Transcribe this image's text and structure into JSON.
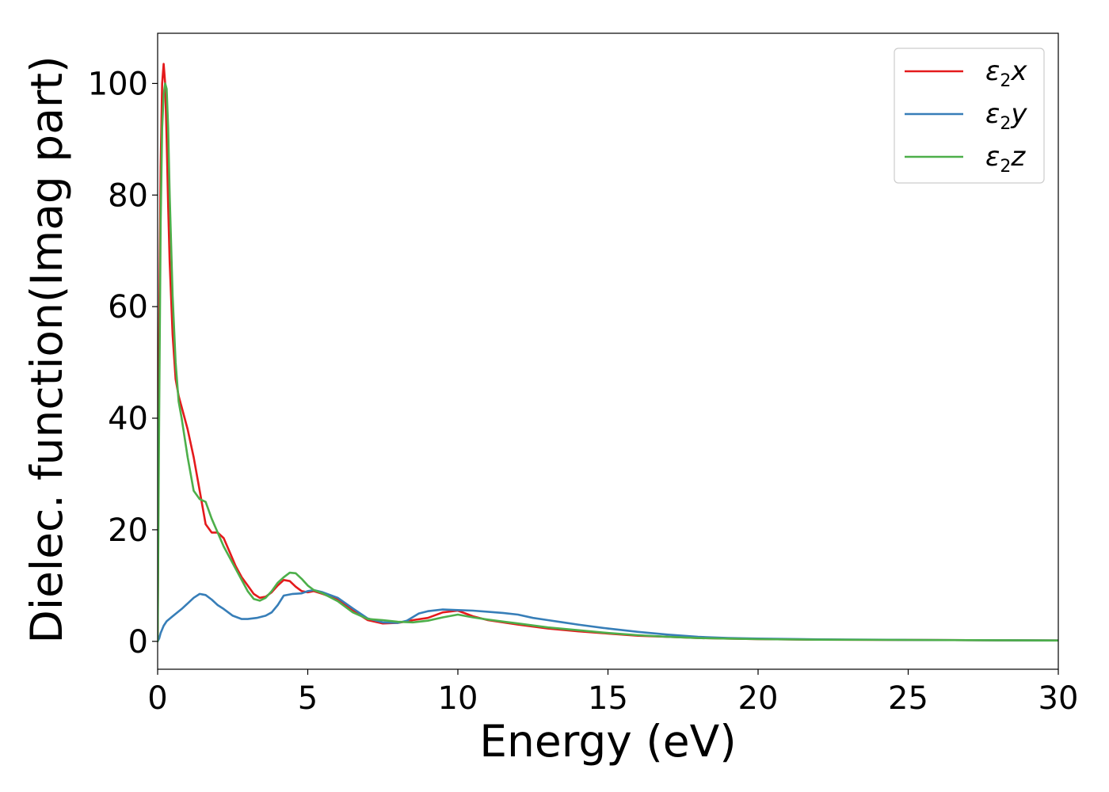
{
  "chart_data": {
    "type": "line",
    "title": "",
    "xlabel": "Energy (eV)",
    "ylabel": "Dielec. function(Imag part)",
    "xlim": [
      0,
      30
    ],
    "ylim": [
      -5,
      109
    ],
    "xticks": [
      0,
      5,
      10,
      15,
      20,
      25,
      30
    ],
    "xtick_labels": [
      "0",
      "5",
      "10",
      "15",
      "20",
      "25",
      "30"
    ],
    "yticks": [
      0,
      20,
      40,
      60,
      80,
      100
    ],
    "ytick_labels": [
      "0",
      "20",
      "40",
      "60",
      "80",
      "100"
    ],
    "grid": false,
    "legend_position": "top-right",
    "series": [
      {
        "name": "ε2x",
        "legend": {
          "base": "ε",
          "sub": "2",
          "suffix": "x"
        },
        "color": "#e41a1c",
        "x": [
          0,
          0.05,
          0.1,
          0.15,
          0.2,
          0.25,
          0.3,
          0.35,
          0.4,
          0.5,
          0.6,
          0.7,
          0.8,
          1.0,
          1.2,
          1.4,
          1.6,
          1.8,
          2.0,
          2.2,
          2.4,
          2.6,
          2.8,
          3.0,
          3.2,
          3.4,
          3.6,
          3.8,
          4.0,
          4.2,
          4.4,
          4.6,
          4.8,
          5.0,
          5.2,
          5.5,
          6.0,
          6.5,
          7.0,
          7.5,
          8.0,
          8.5,
          9.0,
          9.5,
          10.0,
          10.5,
          11.0,
          12.0,
          13.0,
          14.0,
          15.0,
          16.0,
          17.0,
          18.0,
          19.0,
          20.0,
          22.0,
          25.0,
          28.0,
          30.0
        ],
        "y": [
          0,
          55,
          85,
          100,
          103.5,
          100,
          90,
          78,
          68,
          55,
          47,
          44,
          42,
          38,
          33,
          27,
          21,
          19.5,
          19.5,
          18.5,
          16,
          13.5,
          11.5,
          10,
          8.5,
          7.8,
          8,
          8.8,
          10,
          11,
          10.8,
          9.8,
          9,
          8.8,
          9,
          8.5,
          7.5,
          5.5,
          3.8,
          3.2,
          3.3,
          3.8,
          4.2,
          5.2,
          5.5,
          4.5,
          3.8,
          3.0,
          2.3,
          1.8,
          1.4,
          1.0,
          0.8,
          0.6,
          0.5,
          0.4,
          0.3,
          0.25,
          0.2,
          0.15
        ]
      },
      {
        "name": "ε2y",
        "legend": {
          "base": "ε",
          "sub": "2",
          "suffix": "y"
        },
        "color": "#377eb8",
        "x": [
          0,
          0.05,
          0.1,
          0.2,
          0.3,
          0.5,
          0.8,
          1.0,
          1.2,
          1.4,
          1.6,
          1.8,
          2.0,
          2.2,
          2.5,
          2.8,
          3.0,
          3.3,
          3.6,
          3.8,
          4.0,
          4.2,
          4.5,
          4.8,
          5.0,
          5.2,
          5.5,
          6.0,
          6.5,
          7.0,
          7.5,
          8.0,
          8.3,
          8.7,
          9.0,
          9.5,
          10.0,
          10.5,
          11.0,
          11.5,
          12.0,
          12.5,
          13.0,
          13.5,
          14.0,
          15.0,
          16.0,
          17.0,
          18.0,
          19.0,
          20.0,
          22.0,
          25.0,
          28.0,
          30.0
        ],
        "y": [
          0,
          0.5,
          1.5,
          2.8,
          3.6,
          4.5,
          5.8,
          6.8,
          7.8,
          8.5,
          8.3,
          7.5,
          6.5,
          5.8,
          4.6,
          4.0,
          4.0,
          4.2,
          4.6,
          5.2,
          6.5,
          8.2,
          8.5,
          8.6,
          9,
          9.2,
          8.8,
          7.8,
          5.9,
          4.1,
          3.4,
          3.3,
          3.7,
          5.0,
          5.4,
          5.7,
          5.6,
          5.5,
          5.3,
          5.1,
          4.8,
          4.2,
          3.8,
          3.4,
          3.0,
          2.3,
          1.7,
          1.2,
          0.8,
          0.6,
          0.5,
          0.35,
          0.25,
          0.2,
          0.15
        ]
      },
      {
        "name": "ε2z",
        "legend": {
          "base": "ε",
          "sub": "2",
          "suffix": "z"
        },
        "color": "#4daf4a",
        "x": [
          0,
          0.05,
          0.1,
          0.15,
          0.2,
          0.25,
          0.3,
          0.35,
          0.4,
          0.5,
          0.6,
          0.7,
          0.8,
          1.0,
          1.2,
          1.4,
          1.6,
          1.8,
          2.0,
          2.2,
          2.4,
          2.6,
          2.8,
          3.0,
          3.2,
          3.4,
          3.6,
          3.8,
          4.0,
          4.2,
          4.4,
          4.6,
          4.8,
          5.0,
          5.2,
          5.5,
          6.0,
          6.5,
          7.0,
          7.5,
          8.0,
          8.5,
          9.0,
          9.5,
          10.0,
          10.5,
          11.0,
          12.0,
          13.0,
          14.0,
          15.0,
          16.0,
          17.0,
          18.0,
          19.0,
          20.0,
          22.0,
          25.0,
          28.0,
          30.0
        ],
        "y": [
          0,
          40,
          75,
          92,
          98,
          100,
          99,
          92,
          80,
          62,
          50,
          43,
          40,
          33,
          27,
          25.5,
          25,
          22,
          19.5,
          17,
          15,
          13,
          11,
          9,
          7.6,
          7.3,
          7.8,
          9,
          10.5,
          11.5,
          12.3,
          12.2,
          11.2,
          10,
          9.2,
          8.6,
          7.2,
          5.2,
          4.0,
          3.8,
          3.5,
          3.4,
          3.7,
          4.3,
          4.8,
          4.3,
          3.9,
          3.2,
          2.5,
          2.0,
          1.5,
          1.1,
          0.8,
          0.6,
          0.5,
          0.4,
          0.3,
          0.25,
          0.2,
          0.15
        ]
      }
    ]
  }
}
